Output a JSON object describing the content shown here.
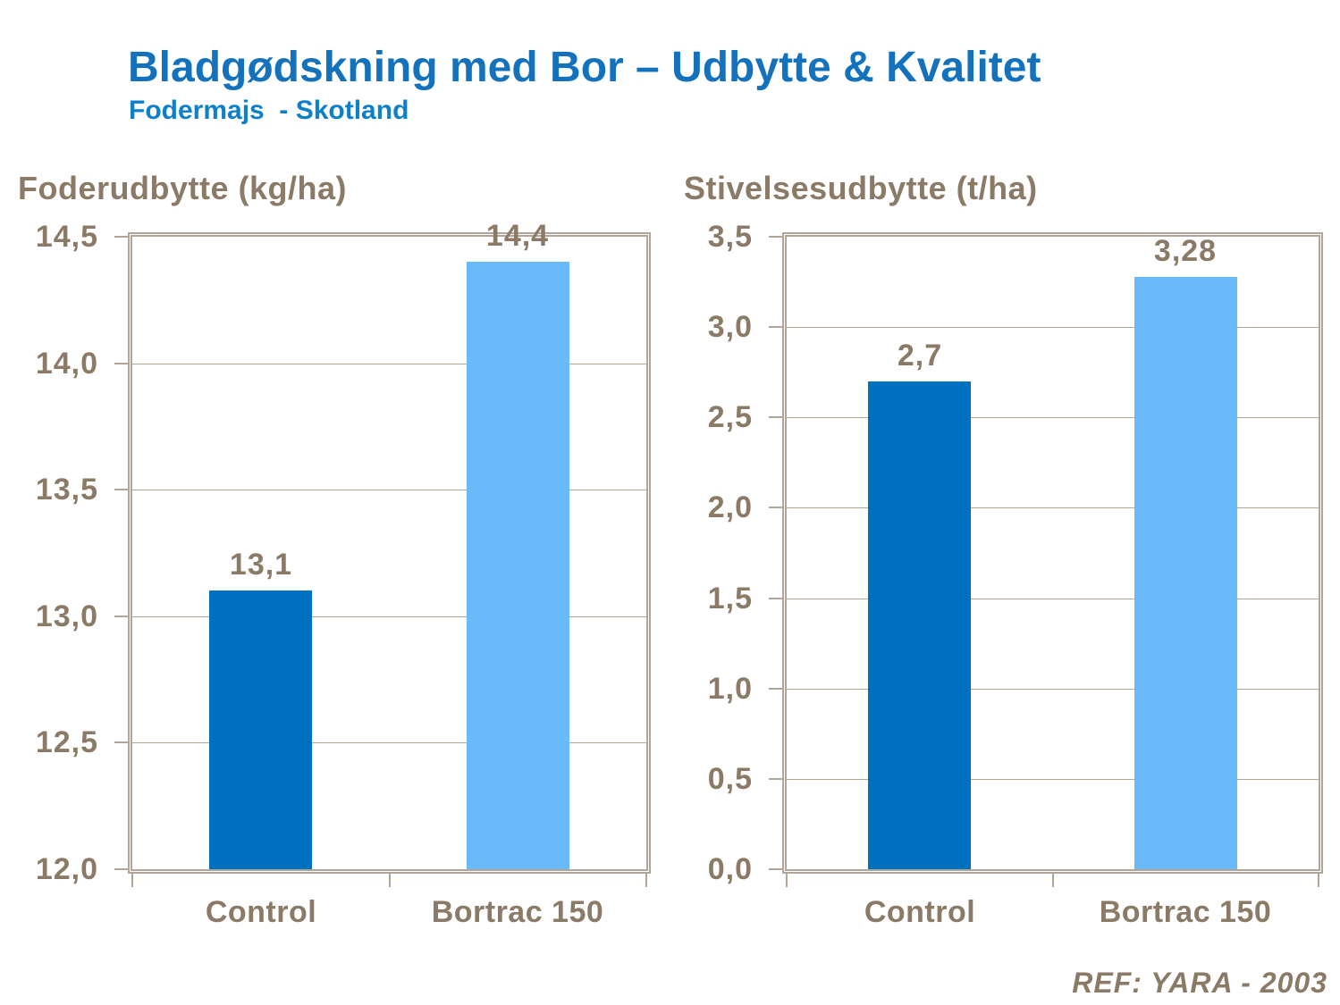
{
  "slide": {
    "title": "Bladgødskning med Bor – Udbytte & Kvalitet",
    "subtitle": "Fodermajs  - Skotland",
    "reference": "REF: YARA - 2003"
  },
  "colors": {
    "title_blue": "#1472bd",
    "subtitle_blue": "#0d80c9",
    "axis_taupe": "#8a7a66",
    "frame_taupe": "#b0a598",
    "bar_dark_blue": "#0070c0",
    "bar_light_blue": "#69baf9"
  },
  "chart_data": [
    {
      "type": "bar",
      "title": "Foderudbytte (kg/ha)",
      "categories": [
        "Control",
        "Bortrac 150"
      ],
      "values": [
        13.1,
        14.4
      ],
      "value_labels": [
        "13,1",
        "14,4"
      ],
      "series_colors": [
        "#0070c0",
        "#69baf9"
      ],
      "xlabel": "",
      "ylabel": "Foderudbytte (kg/ha)",
      "ylim": [
        12.0,
        14.5
      ],
      "ytick_step": 0.5,
      "ytick_labels_top_to_bottom": [
        "14,5",
        "14,0",
        "13,5",
        "13,0",
        "12,5",
        "12,0"
      ],
      "grid": true,
      "legend": "none"
    },
    {
      "type": "bar",
      "title": "Stivelsesudbytte (t/ha)",
      "categories": [
        "Control",
        "Bortrac 150"
      ],
      "values": [
        2.7,
        3.28
      ],
      "value_labels": [
        "2,7",
        "3,28"
      ],
      "series_colors": [
        "#0070c0",
        "#69baf9"
      ],
      "xlabel": "",
      "ylabel": "Stivelsesudbytte (t/ha)",
      "ylim": [
        0.0,
        3.5
      ],
      "ytick_step": 0.5,
      "ytick_labels_top_to_bottom": [
        "3,5",
        "3,0",
        "2,5",
        "2,0",
        "1,5",
        "1,0",
        "0,5",
        "0,0"
      ],
      "grid": true,
      "legend": "none"
    }
  ]
}
